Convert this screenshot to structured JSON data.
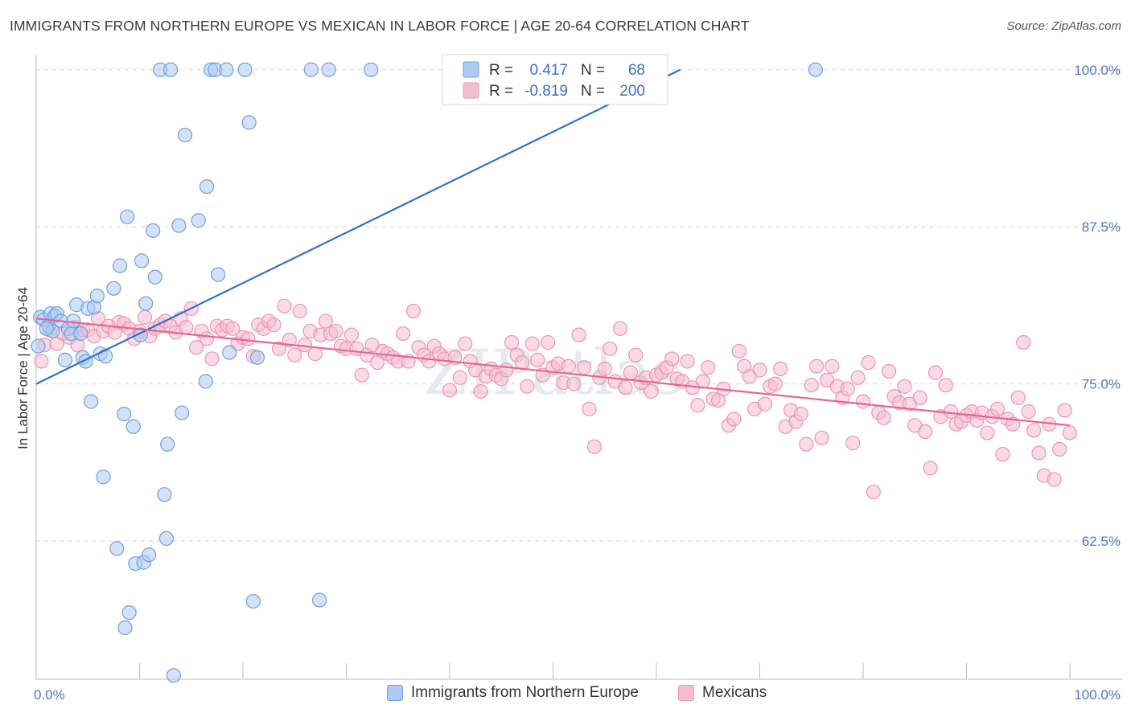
{
  "header": {
    "title": "IMMIGRANTS FROM NORTHERN EUROPE VS MEXICAN IN LABOR FORCE | AGE 20-64 CORRELATION CHART",
    "source": "Source: ZipAtlas.com"
  },
  "watermark": "ZIPatlas",
  "colors": {
    "blue_fill": "#aecbf2",
    "blue_stroke": "#6f9fe0",
    "blue_line": "#2c6fcf",
    "pink_fill": "#f6bdd0",
    "pink_stroke": "#ee93b3",
    "pink_line": "#e46592",
    "grid": "#d9d9d9",
    "tick_text": "#4a78c8"
  },
  "legend": {
    "rows": [
      {
        "r_label": "R =",
        "r_value": "0.417",
        "n_label": "N =",
        "n_value": "68"
      },
      {
        "r_label": "R =",
        "r_value": "-0.819",
        "n_label": "N =",
        "n_value": "200"
      }
    ]
  },
  "bottom_legend": {
    "items": [
      "Immigrants from Northern Europe",
      "Mexicans"
    ]
  },
  "chart_data": {
    "type": "scatter",
    "title": "IMMIGRANTS FROM NORTHERN EUROPE VS MEXICAN IN LABOR FORCE | AGE 20-64 CORRELATION CHART",
    "xlabel": "",
    "ylabel": "In Labor Force | Age 20-64",
    "xlim": [
      0,
      100
    ],
    "ylim": [
      51.5,
      101.2
    ],
    "x_tick_labels": [
      {
        "value": 0,
        "label": "0.0%"
      },
      {
        "value": 100,
        "label": "100.0%"
      }
    ],
    "y_tick_labels": [
      {
        "value": 100.0,
        "label": "100.0%"
      },
      {
        "value": 87.5,
        "label": "87.5%"
      },
      {
        "value": 75.0,
        "label": "75.0%"
      },
      {
        "value": 62.5,
        "label": "62.5%"
      }
    ],
    "x_minor_ticks": [
      0,
      10,
      20,
      30,
      40,
      50,
      60,
      70,
      80,
      90,
      100
    ],
    "grid": true,
    "legend_placement": "top-center",
    "series": [
      {
        "name": "Immigrants from Northern Europe",
        "color": "#aecbf2",
        "trend": {
          "x": [
            0,
            62.3
          ],
          "y": [
            75.0,
            100.0
          ]
        },
        "points": [
          [
            0.2,
            78.0
          ],
          [
            0.4,
            80.3
          ],
          [
            0.7,
            80.1
          ],
          [
            1.2,
            79.6
          ],
          [
            1.4,
            80.6
          ],
          [
            1.6,
            79.2
          ],
          [
            1.8,
            80.4
          ],
          [
            2.0,
            80.6
          ],
          [
            2.4,
            80.0
          ],
          [
            2.8,
            76.9
          ],
          [
            3.1,
            79.4
          ],
          [
            3.4,
            79.0
          ],
          [
            3.6,
            80.0
          ],
          [
            3.9,
            81.3
          ],
          [
            4.3,
            79.0
          ],
          [
            4.5,
            77.1
          ],
          [
            4.8,
            76.8
          ],
          [
            5.0,
            81.0
          ],
          [
            5.3,
            73.6
          ],
          [
            5.6,
            81.1
          ],
          [
            5.9,
            82.0
          ],
          [
            6.2,
            77.4
          ],
          [
            6.5,
            67.6
          ],
          [
            6.7,
            77.2
          ],
          [
            7.5,
            82.6
          ],
          [
            7.8,
            61.9
          ],
          [
            8.1,
            84.4
          ],
          [
            8.5,
            72.6
          ],
          [
            8.8,
            88.3
          ],
          [
            9.0,
            56.8
          ],
          [
            8.6,
            55.6
          ],
          [
            9.4,
            71.6
          ],
          [
            9.6,
            60.7
          ],
          [
            10.1,
            78.9
          ],
          [
            10.2,
            84.8
          ],
          [
            10.4,
            60.8
          ],
          [
            10.6,
            81.4
          ],
          [
            10.9,
            61.4
          ],
          [
            11.3,
            87.2
          ],
          [
            11.5,
            83.5
          ],
          [
            12.0,
            100.0
          ],
          [
            12.4,
            66.2
          ],
          [
            12.6,
            62.7
          ],
          [
            12.7,
            70.2
          ],
          [
            13.0,
            100.0
          ],
          [
            13.3,
            51.8
          ],
          [
            13.8,
            87.6
          ],
          [
            14.1,
            72.7
          ],
          [
            14.4,
            94.8
          ],
          [
            15.7,
            88.0
          ],
          [
            16.4,
            75.2
          ],
          [
            16.5,
            90.7
          ],
          [
            16.9,
            100.0
          ],
          [
            17.3,
            100.0
          ],
          [
            17.6,
            83.7
          ],
          [
            18.4,
            100.0
          ],
          [
            18.7,
            77.5
          ],
          [
            20.2,
            100.0
          ],
          [
            20.6,
            95.8
          ],
          [
            21.0,
            57.7
          ],
          [
            21.4,
            77.1
          ],
          [
            26.6,
            100.0
          ],
          [
            27.4,
            57.8
          ],
          [
            28.3,
            100.0
          ],
          [
            32.4,
            100.0
          ],
          [
            56.7,
            100.0
          ],
          [
            75.4,
            100.0
          ],
          [
            1.0,
            79.4
          ]
        ]
      },
      {
        "name": "Mexicans",
        "color": "#f6bdd0",
        "trend": {
          "x": [
            0,
            100
          ],
          "y": [
            80.2,
            71.7
          ]
        },
        "points": [
          [
            0.5,
            76.8
          ],
          [
            0.8,
            78.1
          ],
          [
            1.3,
            79.3
          ],
          [
            2.0,
            78.2
          ],
          [
            2.6,
            79.0
          ],
          [
            3.2,
            78.7
          ],
          [
            3.7,
            79.5
          ],
          [
            4.0,
            78.1
          ],
          [
            4.5,
            79.3
          ],
          [
            5.0,
            79.3
          ],
          [
            5.6,
            78.8
          ],
          [
            6.0,
            80.2
          ],
          [
            6.5,
            79.2
          ],
          [
            7.0,
            79.6
          ],
          [
            7.6,
            79.1
          ],
          [
            8.0,
            79.9
          ],
          [
            8.5,
            79.8
          ],
          [
            9.0,
            79.4
          ],
          [
            9.5,
            78.6
          ],
          [
            10.0,
            79.2
          ],
          [
            10.5,
            80.3
          ],
          [
            11.0,
            78.8
          ],
          [
            11.5,
            79.4
          ],
          [
            12.0,
            79.7
          ],
          [
            12.5,
            80.0
          ],
          [
            13.0,
            79.6
          ],
          [
            13.5,
            79.1
          ],
          [
            14.0,
            80.2
          ],
          [
            14.5,
            79.5
          ],
          [
            15.0,
            81.0
          ],
          [
            15.5,
            77.9
          ],
          [
            16.0,
            79.2
          ],
          [
            16.5,
            78.6
          ],
          [
            17.0,
            77.0
          ],
          [
            17.5,
            79.6
          ],
          [
            18.0,
            79.3
          ],
          [
            18.5,
            79.6
          ],
          [
            19.0,
            79.4
          ],
          [
            19.5,
            78.2
          ],
          [
            20.0,
            78.7
          ],
          [
            20.5,
            78.6
          ],
          [
            21.0,
            77.2
          ],
          [
            21.5,
            79.7
          ],
          [
            22.0,
            79.4
          ],
          [
            22.5,
            80.0
          ],
          [
            23.0,
            79.7
          ],
          [
            23.5,
            77.8
          ],
          [
            24.0,
            81.2
          ],
          [
            24.5,
            78.5
          ],
          [
            25.0,
            77.3
          ],
          [
            25.5,
            80.8
          ],
          [
            26.0,
            78.1
          ],
          [
            26.5,
            79.2
          ],
          [
            27.0,
            77.4
          ],
          [
            27.5,
            78.9
          ],
          [
            28.0,
            80.0
          ],
          [
            28.5,
            79.0
          ],
          [
            29.0,
            79.2
          ],
          [
            29.5,
            78.0
          ],
          [
            30.0,
            77.8
          ],
          [
            30.5,
            78.9
          ],
          [
            31.0,
            77.8
          ],
          [
            31.5,
            75.7
          ],
          [
            32.0,
            77.3
          ],
          [
            32.5,
            78.1
          ],
          [
            33.0,
            76.7
          ],
          [
            33.5,
            77.6
          ],
          [
            34.0,
            77.4
          ],
          [
            34.5,
            77.1
          ],
          [
            35.0,
            76.8
          ],
          [
            35.5,
            79.0
          ],
          [
            36.0,
            76.8
          ],
          [
            36.5,
            80.8
          ],
          [
            37.0,
            77.9
          ],
          [
            37.5,
            77.3
          ],
          [
            38.0,
            76.8
          ],
          [
            38.5,
            78.0
          ],
          [
            39.0,
            77.4
          ],
          [
            39.5,
            77.0
          ],
          [
            40.0,
            74.5
          ],
          [
            40.5,
            77.1
          ],
          [
            41.0,
            75.5
          ],
          [
            41.5,
            78.2
          ],
          [
            42.0,
            76.8
          ],
          [
            42.5,
            76.1
          ],
          [
            43.0,
            74.4
          ],
          [
            43.5,
            75.6
          ],
          [
            44.0,
            76.2
          ],
          [
            44.5,
            75.7
          ],
          [
            45.0,
            75.4
          ],
          [
            45.5,
            76.1
          ],
          [
            46.0,
            78.3
          ],
          [
            46.5,
            77.3
          ],
          [
            47.0,
            76.7
          ],
          [
            47.5,
            74.8
          ],
          [
            48.0,
            78.2
          ],
          [
            48.5,
            76.9
          ],
          [
            49.0,
            75.7
          ],
          [
            49.5,
            78.3
          ],
          [
            50.0,
            76.3
          ],
          [
            50.5,
            76.6
          ],
          [
            51.0,
            75.1
          ],
          [
            51.5,
            76.4
          ],
          [
            52.0,
            75.0
          ],
          [
            52.5,
            78.9
          ],
          [
            53.0,
            76.3
          ],
          [
            53.5,
            73.0
          ],
          [
            54.0,
            70.0
          ],
          [
            54.5,
            75.5
          ],
          [
            55.0,
            76.2
          ],
          [
            55.5,
            77.8
          ],
          [
            56.0,
            75.2
          ],
          [
            56.5,
            79.4
          ],
          [
            57.0,
            74.7
          ],
          [
            57.5,
            75.9
          ],
          [
            58.0,
            77.3
          ],
          [
            58.5,
            75.1
          ],
          [
            59.0,
            75.5
          ],
          [
            59.5,
            74.4
          ],
          [
            60.0,
            75.7
          ],
          [
            60.5,
            75.9
          ],
          [
            61.0,
            76.3
          ],
          [
            61.5,
            77.0
          ],
          [
            62.0,
            75.4
          ],
          [
            62.5,
            75.2
          ],
          [
            63.0,
            76.8
          ],
          [
            63.5,
            74.7
          ],
          [
            64.0,
            73.3
          ],
          [
            64.5,
            75.2
          ],
          [
            65.0,
            76.3
          ],
          [
            65.5,
            73.8
          ],
          [
            66.0,
            73.7
          ],
          [
            66.5,
            74.6
          ],
          [
            67.0,
            71.7
          ],
          [
            67.5,
            72.2
          ],
          [
            68.0,
            77.6
          ],
          [
            68.5,
            76.4
          ],
          [
            69.0,
            75.6
          ],
          [
            69.5,
            73.0
          ],
          [
            70.0,
            76.1
          ],
          [
            70.5,
            73.4
          ],
          [
            71.0,
            74.8
          ],
          [
            71.5,
            75.0
          ],
          [
            72.0,
            76.2
          ],
          [
            72.5,
            71.6
          ],
          [
            73.0,
            72.9
          ],
          [
            73.5,
            72.0
          ],
          [
            74.0,
            72.6
          ],
          [
            74.5,
            70.2
          ],
          [
            75.0,
            74.9
          ],
          [
            75.5,
            76.4
          ],
          [
            76.0,
            70.7
          ],
          [
            76.5,
            75.3
          ],
          [
            77.0,
            76.4
          ],
          [
            77.5,
            74.8
          ],
          [
            78.0,
            73.9
          ],
          [
            78.5,
            74.6
          ],
          [
            79.0,
            70.3
          ],
          [
            79.5,
            75.5
          ],
          [
            80.0,
            73.6
          ],
          [
            80.5,
            76.7
          ],
          [
            81.0,
            66.4
          ],
          [
            81.5,
            72.7
          ],
          [
            82.0,
            72.3
          ],
          [
            82.5,
            76.0
          ],
          [
            83.0,
            74.0
          ],
          [
            83.5,
            73.5
          ],
          [
            84.0,
            74.8
          ],
          [
            84.5,
            73.4
          ],
          [
            85.0,
            71.7
          ],
          [
            85.5,
            73.9
          ],
          [
            86.0,
            71.2
          ],
          [
            86.5,
            68.3
          ],
          [
            87.0,
            75.9
          ],
          [
            87.5,
            72.4
          ],
          [
            88.0,
            74.9
          ],
          [
            88.5,
            72.8
          ],
          [
            89.0,
            71.8
          ],
          [
            89.5,
            72.0
          ],
          [
            90.0,
            72.5
          ],
          [
            90.5,
            72.8
          ],
          [
            91.0,
            72.1
          ],
          [
            91.5,
            72.7
          ],
          [
            92.0,
            71.1
          ],
          [
            92.5,
            72.4
          ],
          [
            93.0,
            73.0
          ],
          [
            93.5,
            69.4
          ],
          [
            94.0,
            72.2
          ],
          [
            94.5,
            71.8
          ],
          [
            95.0,
            73.9
          ],
          [
            95.5,
            78.3
          ],
          [
            96.0,
            72.8
          ],
          [
            96.5,
            71.3
          ],
          [
            97.0,
            69.5
          ],
          [
            97.5,
            67.7
          ],
          [
            98.0,
            71.8
          ],
          [
            98.5,
            67.4
          ],
          [
            99.0,
            69.8
          ],
          [
            99.5,
            72.9
          ],
          [
            100.0,
            71.1
          ]
        ]
      }
    ]
  }
}
